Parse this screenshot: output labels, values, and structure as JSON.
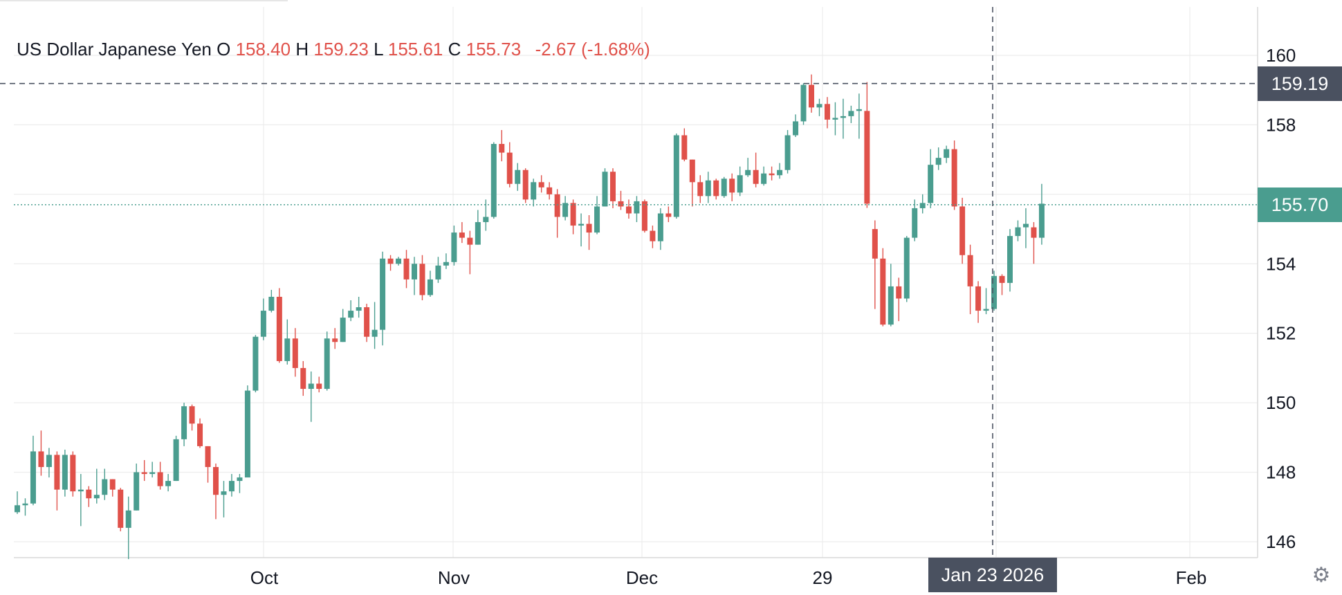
{
  "legend": {
    "symbol": "US Dollar Japanese Yen",
    "o_label": "O",
    "o_value": "158.40",
    "h_label": "H",
    "h_value": "159.23",
    "l_label": "L",
    "l_value": "155.61",
    "c_label": "C",
    "c_value": "155.73",
    "change": "-2.67 (-1.68%)"
  },
  "crosshair": {
    "price_label": "159.19",
    "time_label": "Jan 23 2026"
  },
  "last_price_label": "155.70",
  "settings_icon": "gear-icon",
  "colors": {
    "up": "#4a9d8f",
    "down": "#e0514a",
    "grid": "#ececec",
    "crosshair": "#4a5160"
  },
  "chart_data": {
    "type": "candlestick",
    "x_tick_labels": [
      "Oct",
      "Nov",
      "Dec",
      "29",
      "Feb"
    ],
    "y_tick_labels": [
      "160",
      "158",
      "156",
      "154",
      "152",
      "150",
      "148",
      "146"
    ],
    "y_ticks": [
      160,
      158,
      156,
      154,
      152,
      150,
      148,
      146
    ],
    "ylim": [
      144,
      162
    ],
    "grid": true,
    "crosshair_price": 159.19,
    "last_price": 155.7,
    "candles": [
      [
        146.85,
        147.05,
        147.45,
        146.8
      ],
      [
        147.05,
        147.1,
        147.25,
        146.75
      ],
      [
        147.1,
        148.6,
        149.05,
        147.05
      ],
      [
        148.6,
        148.15,
        149.2,
        147.9
      ],
      [
        148.15,
        148.5,
        148.7,
        147.85
      ],
      [
        148.5,
        147.5,
        148.6,
        146.9
      ],
      [
        147.5,
        148.5,
        148.65,
        147.3
      ],
      [
        148.5,
        147.45,
        148.6,
        147.3
      ],
      [
        147.45,
        147.5,
        147.95,
        146.45
      ],
      [
        147.5,
        147.25,
        147.6,
        147.0
      ],
      [
        147.25,
        147.35,
        148.1,
        147.1
      ],
      [
        147.35,
        147.8,
        148.1,
        147.2
      ],
      [
        147.8,
        147.5,
        147.8,
        147.3
      ],
      [
        147.5,
        146.4,
        147.55,
        146.3
      ],
      [
        146.4,
        146.9,
        147.3,
        145.5
      ],
      [
        146.9,
        148.0,
        148.25,
        146.9
      ],
      [
        148.0,
        147.95,
        148.35,
        147.75
      ],
      [
        147.95,
        148.0,
        148.3,
        147.85
      ],
      [
        148.0,
        147.6,
        148.3,
        147.5
      ],
      [
        147.6,
        147.75,
        147.95,
        147.45
      ],
      [
        147.75,
        148.95,
        149.05,
        147.75
      ],
      [
        148.95,
        149.9,
        150.0,
        148.75
      ],
      [
        149.9,
        149.4,
        149.95,
        149.2
      ],
      [
        149.4,
        148.75,
        149.55,
        148.7
      ],
      [
        148.75,
        148.15,
        148.75,
        147.7
      ],
      [
        148.15,
        147.35,
        148.25,
        146.65
      ],
      [
        147.35,
        147.45,
        147.75,
        146.7
      ],
      [
        147.45,
        147.75,
        147.95,
        147.3
      ],
      [
        147.75,
        147.85,
        147.95,
        147.4
      ],
      [
        147.85,
        150.35,
        150.5,
        149.15
      ],
      [
        150.35,
        151.9,
        151.95,
        150.3
      ],
      [
        151.9,
        152.65,
        153.0,
        151.8
      ],
      [
        152.65,
        153.05,
        153.25,
        152.6
      ],
      [
        153.05,
        151.2,
        153.3,
        151.15
      ],
      [
        151.2,
        151.85,
        152.4,
        151.1
      ],
      [
        151.85,
        151.0,
        152.15,
        150.75
      ],
      [
        151.0,
        150.4,
        151.2,
        150.2
      ],
      [
        150.4,
        150.55,
        150.9,
        149.45
      ],
      [
        150.55,
        150.4,
        150.75,
        150.3
      ],
      [
        150.4,
        151.85,
        152.05,
        150.35
      ],
      [
        151.85,
        151.75,
        152.15,
        151.55
      ],
      [
        151.75,
        152.45,
        152.7,
        151.75
      ],
      [
        152.45,
        152.65,
        152.95,
        152.35
      ],
      [
        152.65,
        152.75,
        153.05,
        152.45
      ],
      [
        152.75,
        151.9,
        152.85,
        151.75
      ],
      [
        151.9,
        152.1,
        152.9,
        151.55
      ],
      [
        152.1,
        154.15,
        154.35,
        151.65
      ],
      [
        154.15,
        154.0,
        154.25,
        153.8
      ],
      [
        154.0,
        154.15,
        154.2,
        153.95
      ],
      [
        154.15,
        153.55,
        154.4,
        153.3
      ],
      [
        153.55,
        154.0,
        154.2,
        153.1
      ],
      [
        154.0,
        153.1,
        154.25,
        152.95
      ],
      [
        153.1,
        153.55,
        153.8,
        153.05
      ],
      [
        153.55,
        153.95,
        154.2,
        153.45
      ],
      [
        153.95,
        154.05,
        154.3,
        153.85
      ],
      [
        154.05,
        154.9,
        155.1,
        153.95
      ],
      [
        154.9,
        154.75,
        155.2,
        154.6
      ],
      [
        154.75,
        154.55,
        154.95,
        153.7
      ],
      [
        154.55,
        155.2,
        155.55,
        154.55
      ],
      [
        155.2,
        155.35,
        155.85,
        154.95
      ],
      [
        155.35,
        157.45,
        157.5,
        155.3
      ],
      [
        157.45,
        157.2,
        157.85,
        156.95
      ],
      [
        157.2,
        156.3,
        157.5,
        156.2
      ],
      [
        156.3,
        156.7,
        156.9,
        156.1
      ],
      [
        156.7,
        155.85,
        156.75,
        155.75
      ],
      [
        155.85,
        156.35,
        156.45,
        155.65
      ],
      [
        156.35,
        156.2,
        156.55,
        156.05
      ],
      [
        156.2,
        156.0,
        156.35,
        155.85
      ],
      [
        156.0,
        155.35,
        156.15,
        154.75
      ],
      [
        155.35,
        155.75,
        155.95,
        155.25
      ],
      [
        155.75,
        155.1,
        155.85,
        154.85
      ],
      [
        155.1,
        155.15,
        155.45,
        154.5
      ],
      [
        155.15,
        154.9,
        155.4,
        154.4
      ],
      [
        154.9,
        155.65,
        155.95,
        154.85
      ],
      [
        155.65,
        156.65,
        156.75,
        155.65
      ],
      [
        156.65,
        155.8,
        156.75,
        155.6
      ],
      [
        155.8,
        155.65,
        156.1,
        155.55
      ],
      [
        155.65,
        155.45,
        155.85,
        155.3
      ],
      [
        155.45,
        155.8,
        155.95,
        155.2
      ],
      [
        155.8,
        154.95,
        155.85,
        154.9
      ],
      [
        154.95,
        154.65,
        155.1,
        154.45
      ],
      [
        154.65,
        155.45,
        155.6,
        154.4
      ],
      [
        155.45,
        155.35,
        155.65,
        155.2
      ],
      [
        155.35,
        157.7,
        157.75,
        155.3
      ],
      [
        157.7,
        157.0,
        157.9,
        156.95
      ],
      [
        157.0,
        156.35,
        157.0,
        155.65
      ],
      [
        156.35,
        155.95,
        156.55,
        155.75
      ],
      [
        155.95,
        156.4,
        156.65,
        155.75
      ],
      [
        156.4,
        155.95,
        156.45,
        155.85
      ],
      [
        155.95,
        156.45,
        156.5,
        155.9
      ],
      [
        156.45,
        156.05,
        156.6,
        155.8
      ],
      [
        156.05,
        156.55,
        156.8,
        155.95
      ],
      [
        156.55,
        156.7,
        157.05,
        156.5
      ],
      [
        156.7,
        156.3,
        157.2,
        156.2
      ],
      [
        156.3,
        156.6,
        156.8,
        156.25
      ],
      [
        156.6,
        156.55,
        156.8,
        156.4
      ],
      [
        156.55,
        156.7,
        156.9,
        156.45
      ],
      [
        156.7,
        157.7,
        157.85,
        156.6
      ],
      [
        157.7,
        158.1,
        158.3,
        157.65
      ],
      [
        158.1,
        159.15,
        159.2,
        158.0
      ],
      [
        159.15,
        158.5,
        159.45,
        158.35
      ],
      [
        158.5,
        158.6,
        158.75,
        158.25
      ],
      [
        158.6,
        158.15,
        158.8,
        157.9
      ],
      [
        158.15,
        158.2,
        158.65,
        157.7
      ],
      [
        158.2,
        158.25,
        158.75,
        157.6
      ],
      [
        158.25,
        158.4,
        158.55,
        158.05
      ],
      [
        158.4,
        158.45,
        158.9,
        157.6
      ],
      [
        158.4,
        155.73,
        159.23,
        155.61
      ],
      [
        155.0,
        154.15,
        155.25,
        152.7
      ],
      [
        154.15,
        152.25,
        154.45,
        152.2
      ],
      [
        152.25,
        153.35,
        154.0,
        152.2
      ],
      [
        153.35,
        153.0,
        153.6,
        152.35
      ],
      [
        153.0,
        154.75,
        154.8,
        152.9
      ],
      [
        154.75,
        155.6,
        155.85,
        154.65
      ],
      [
        155.6,
        155.75,
        156.0,
        155.45
      ],
      [
        155.75,
        156.85,
        157.3,
        155.6
      ],
      [
        156.85,
        157.05,
        157.35,
        156.7
      ],
      [
        157.05,
        157.3,
        157.4,
        156.9
      ],
      [
        157.3,
        155.65,
        157.55,
        155.55
      ],
      [
        155.65,
        154.25,
        155.9,
        154.0
      ],
      [
        154.25,
        153.35,
        154.55,
        152.55
      ],
      [
        153.35,
        152.65,
        153.5,
        152.3
      ],
      [
        152.65,
        152.7,
        153.3,
        152.55
      ],
      [
        152.7,
        153.65,
        153.8,
        152.65
      ],
      [
        153.65,
        153.45,
        153.7,
        153.1
      ],
      [
        153.45,
        154.8,
        155.0,
        153.2
      ],
      [
        154.8,
        155.05,
        155.25,
        154.65
      ],
      [
        155.05,
        155.15,
        155.6,
        154.45
      ],
      [
        155.05,
        154.75,
        155.2,
        154.0
      ],
      [
        154.75,
        155.73,
        156.3,
        154.55
      ]
    ]
  }
}
